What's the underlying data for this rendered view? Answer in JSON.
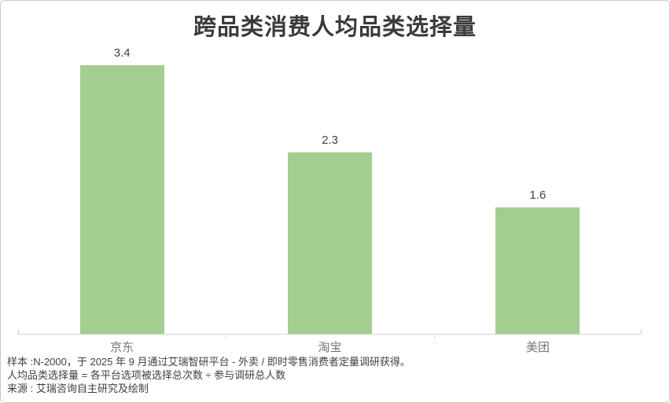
{
  "chart": {
    "title": "跨品类消费人均品类选择量"
  },
  "chart_data": {
    "type": "bar",
    "title": "跨品类消费人均品类选择量",
    "categories": [
      "京东",
      "淘宝",
      "美团"
    ],
    "values": [
      3.4,
      2.3,
      1.6
    ],
    "data_labels": [
      "3.4",
      "2.3",
      "1.6"
    ],
    "xlabel": "",
    "ylabel": "",
    "ylim": [
      0,
      3.4
    ],
    "grid": false,
    "legend": false,
    "bar_color": "#A3CE8F"
  },
  "footer": {
    "line1": "样本 :N-2000，于 2025 年 9 月通过艾瑞智研平台 - 外卖 / 即时零售消费者定量调研获得。",
    "line2": "人均品类选择量 = 各平台选项被选择总次数 ÷ 参与调研总人数",
    "line3": "来源 : 艾瑞咨询自主研究及绘制"
  },
  "colors": {
    "bar": "#A3CE8F",
    "axis_line": "#D5D5D5",
    "title_text": "#3A3A3A",
    "value_text": "#404040",
    "category_text": "#757575",
    "footer_text": "#3F3F3F"
  }
}
